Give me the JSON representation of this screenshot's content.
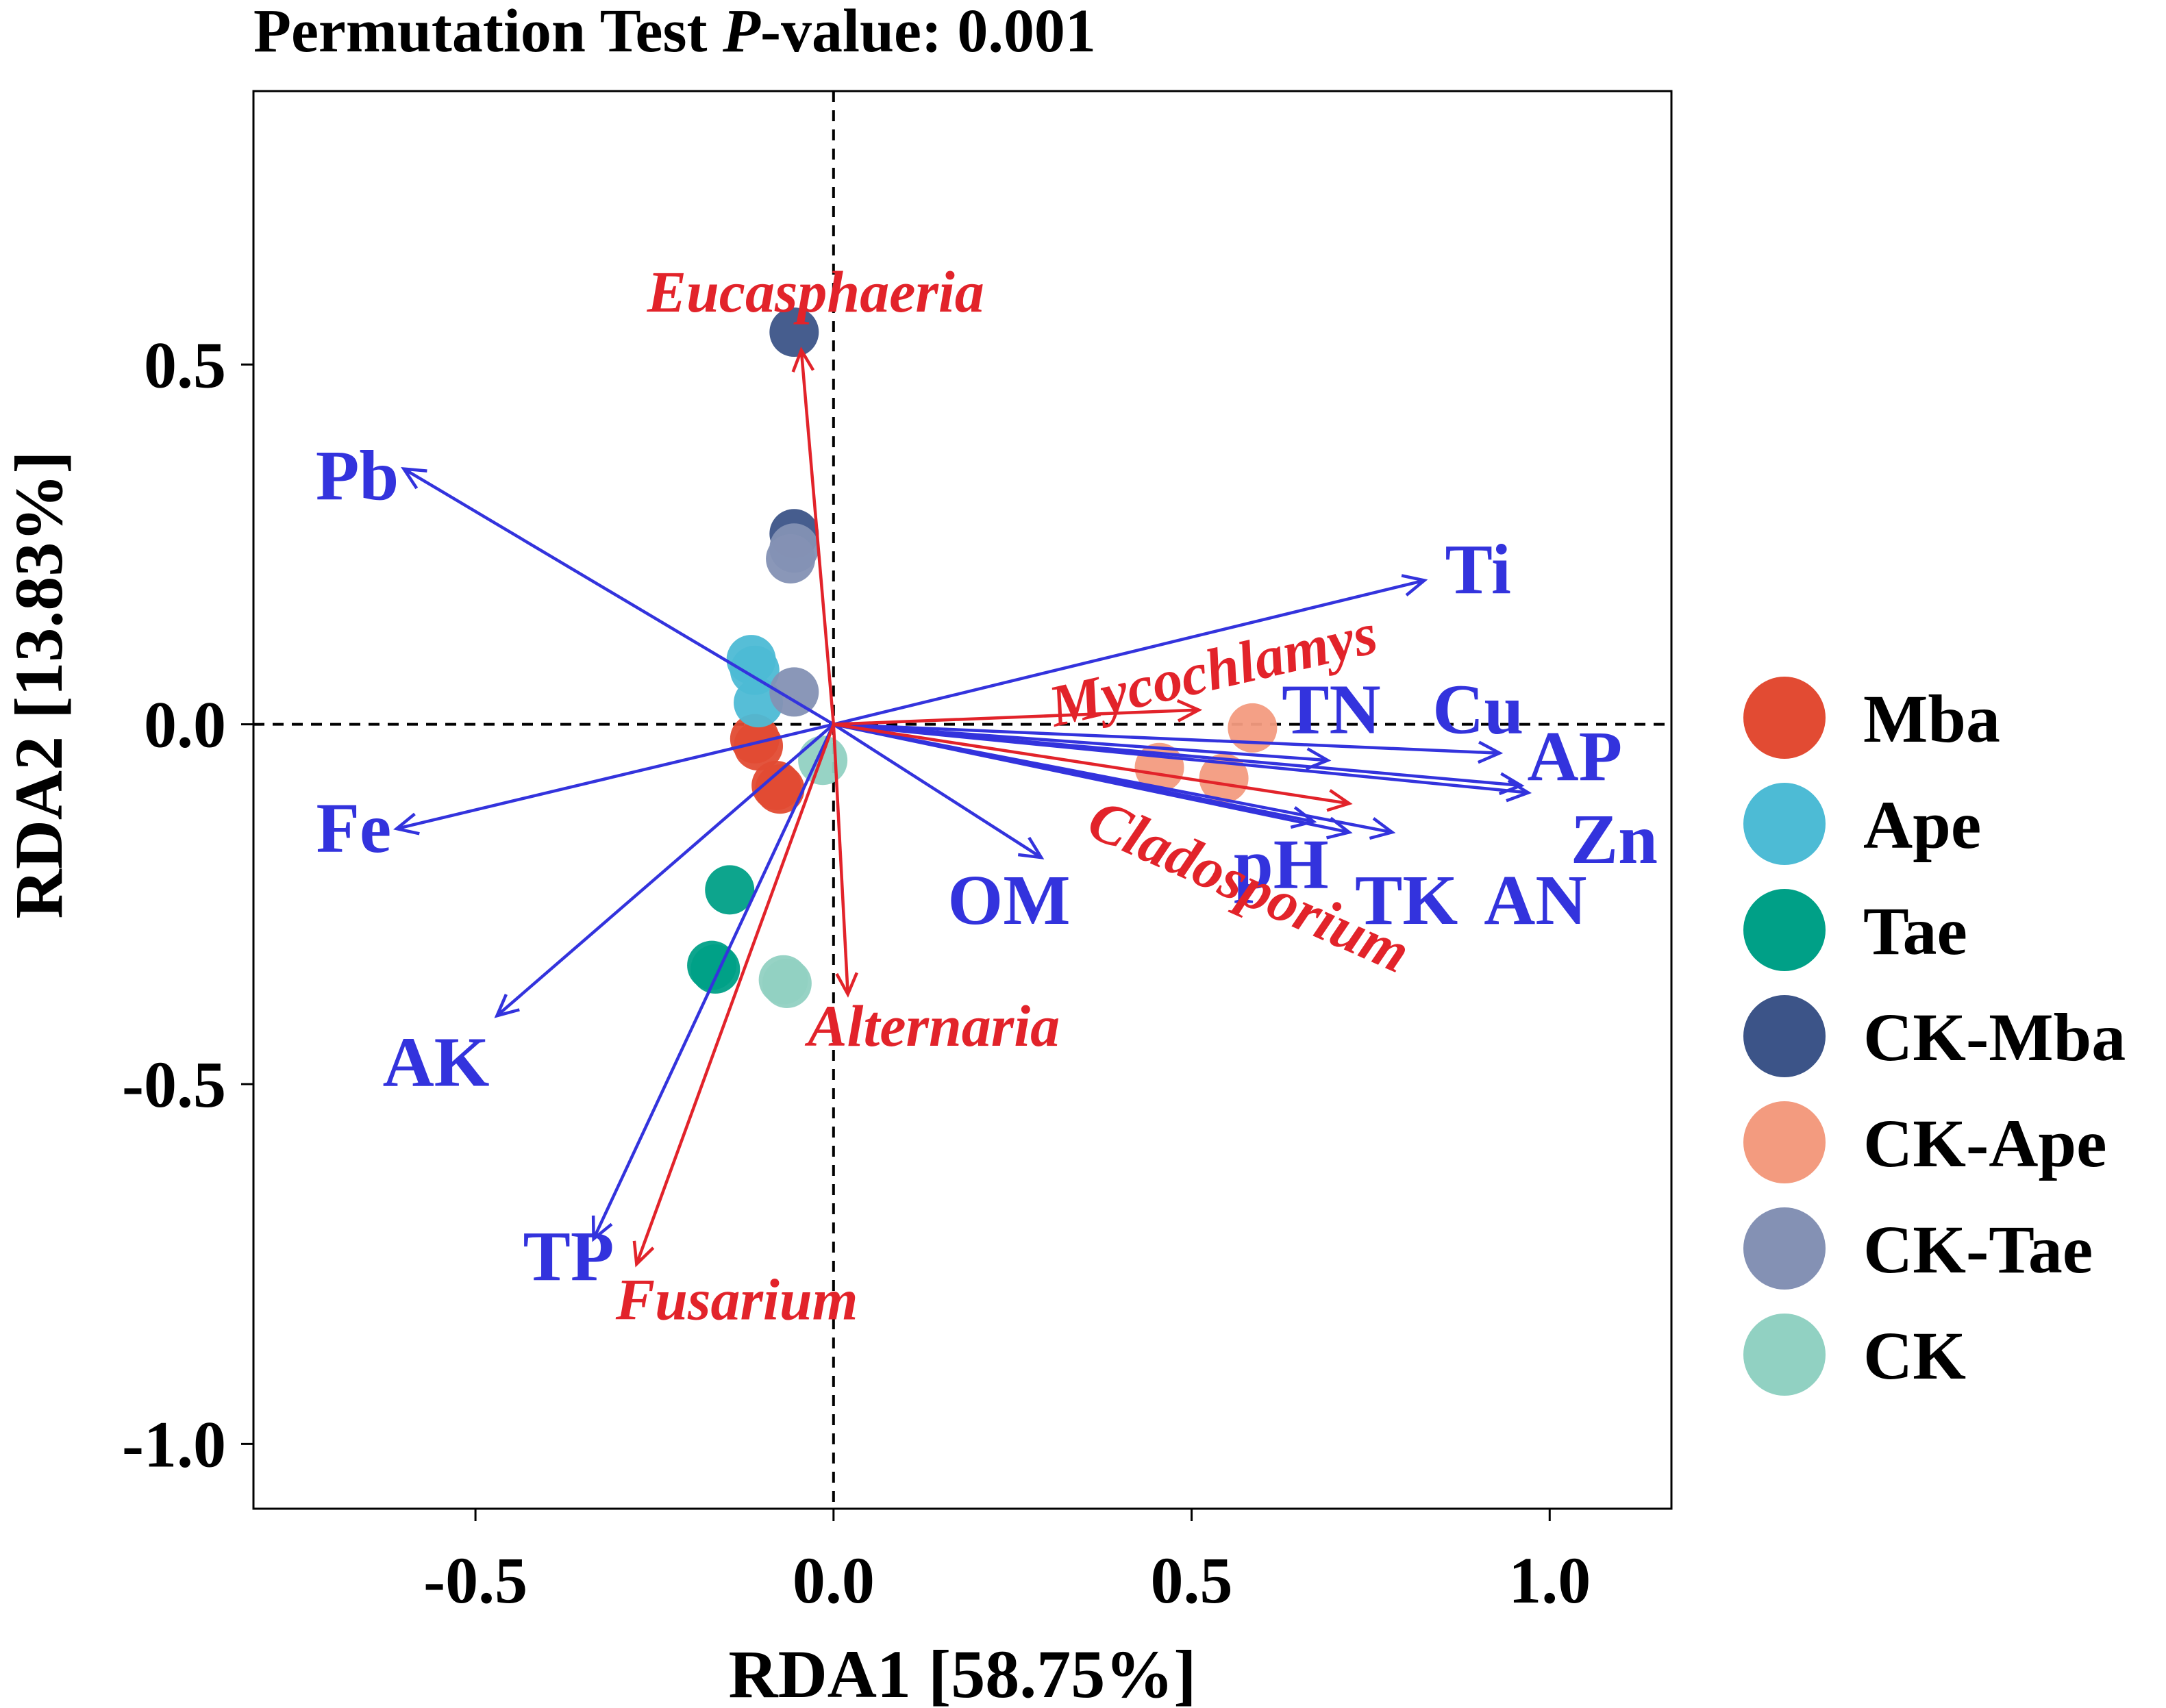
{
  "chart_data": {
    "type": "scatter",
    "title": {
      "prefix": "Permutation Test ",
      "italic": "P",
      "suffix": "-value: 0.001"
    },
    "xlabel": "RDA1 [58.75%]",
    "ylabel": "RDA2 [13.83%]",
    "xlim": [
      -0.81,
      1.17
    ],
    "ylim": [
      -1.09,
      0.88
    ],
    "xticks": [
      -0.5,
      0.0,
      0.5,
      1.0
    ],
    "xtick_labels": [
      "-0.5",
      "0.0",
      "0.5",
      "1.0"
    ],
    "yticks": [
      -1.0,
      -0.5,
      0.0,
      0.5
    ],
    "ytick_labels": [
      "-1.0",
      "-0.5",
      "0.0",
      "0.5"
    ],
    "grid": false,
    "reference_lines": {
      "x": 0,
      "y": 0,
      "style": "dashed"
    },
    "legend_position": "right",
    "series": [
      {
        "name": "Mba",
        "color": "#E24B33",
        "points": [
          [
            -0.105,
            -0.03
          ],
          [
            -0.11,
            -0.02
          ],
          [
            -0.08,
            -0.085
          ],
          [
            -0.075,
            -0.09
          ]
        ]
      },
      {
        "name": "Ape",
        "color": "#4DBBD5",
        "points": [
          [
            -0.115,
            0.09
          ],
          [
            -0.11,
            0.075
          ],
          [
            -0.105,
            0.03
          ]
        ]
      },
      {
        "name": "Tae",
        "color": "#00A087",
        "points": [
          [
            -0.145,
            -0.23
          ],
          [
            -0.17,
            -0.335
          ],
          [
            -0.165,
            -0.34
          ]
        ]
      },
      {
        "name": "CK-Mba",
        "color": "#3C5488",
        "points": [
          [
            -0.055,
            0.545
          ],
          [
            -0.055,
            0.265
          ]
        ]
      },
      {
        "name": "CK-Ape",
        "color": "#F39B7F",
        "points": [
          [
            0.585,
            -0.005
          ],
          [
            0.455,
            -0.06
          ],
          [
            0.545,
            -0.075
          ]
        ]
      },
      {
        "name": "CK-Tae",
        "color": "#8491B4",
        "points": [
          [
            -0.06,
            0.23
          ],
          [
            -0.055,
            0.245
          ],
          [
            -0.055,
            0.045
          ]
        ]
      },
      {
        "name": "CK",
        "color": "#91D1C2",
        "points": [
          [
            -0.015,
            -0.05
          ],
          [
            -0.07,
            -0.355
          ],
          [
            -0.065,
            -0.36
          ]
        ]
      }
    ],
    "env_vectors": {
      "color": "#3333DD",
      "items": [
        {
          "label": "Pb",
          "x": -0.6,
          "y": 0.355,
          "lx": -0.665,
          "ly": 0.345
        },
        {
          "label": "Ti",
          "x": 0.825,
          "y": 0.2,
          "lx": 0.9,
          "ly": 0.215
        },
        {
          "label": "TN",
          "x": 0.69,
          "y": -0.05,
          "lx": 0.695,
          "ly": 0.02
        },
        {
          "label": "Cu",
          "x": 0.93,
          "y": -0.04,
          "lx": 0.9,
          "ly": 0.02
        },
        {
          "label": "AP",
          "x": 0.96,
          "y": -0.085,
          "lx": 1.035,
          "ly": -0.045
        },
        {
          "label": "Zn",
          "x": 0.97,
          "y": -0.095,
          "lx": 1.09,
          "ly": -0.16
        },
        {
          "label": "pH",
          "x": 0.67,
          "y": -0.135,
          "lx": 0.625,
          "ly": -0.195
        },
        {
          "label": "TK",
          "x": 0.72,
          "y": -0.15,
          "lx": 0.8,
          "ly": -0.245
        },
        {
          "label": "AN",
          "x": 0.78,
          "y": -0.15,
          "lx": 0.98,
          "ly": -0.245
        },
        {
          "label": "OM",
          "x": 0.29,
          "y": -0.185,
          "lx": 0.245,
          "ly": -0.245
        },
        {
          "label": "Fe",
          "x": -0.61,
          "y": -0.145,
          "lx": -0.67,
          "ly": -0.145
        },
        {
          "label": "AK",
          "x": -0.47,
          "y": -0.405,
          "lx": -0.555,
          "ly": -0.47
        },
        {
          "label": "TP",
          "x": -0.335,
          "y": -0.715,
          "lx": -0.37,
          "ly": -0.74
        }
      ]
    },
    "species_vectors": {
      "color": "#E2232A",
      "items": [
        {
          "label": "Eucasphaeria",
          "x": -0.045,
          "y": 0.52,
          "lx": -0.025,
          "ly": 0.6,
          "rot": 0
        },
        {
          "label": "Mycochlamys",
          "x": 0.51,
          "y": 0.02,
          "lx": 0.53,
          "ly": 0.075,
          "rot": -13
        },
        {
          "label": "Cladosporium",
          "x": 0.72,
          "y": -0.11,
          "lx": 0.58,
          "ly": -0.225,
          "rot": 24
        },
        {
          "label": "Alternaria",
          "x": 0.02,
          "y": -0.375,
          "lx": 0.14,
          "ly": -0.42,
          "rot": 0
        },
        {
          "label": "Fusarium",
          "x": -0.275,
          "y": -0.75,
          "lx": -0.135,
          "ly": -0.8,
          "rot": 0
        }
      ]
    }
  }
}
